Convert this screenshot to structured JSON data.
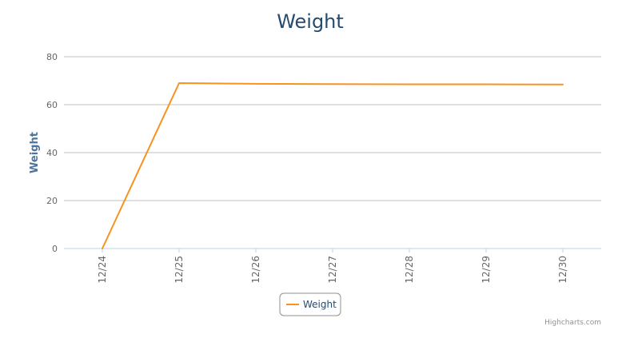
{
  "chart_data": {
    "type": "line",
    "title": "Weight",
    "ylabel": "Weight",
    "categories": [
      "12/24",
      "12/25",
      "12/26",
      "12/27",
      "12/28",
      "12/29",
      "12/30"
    ],
    "ylim": [
      0,
      80
    ],
    "yticks": [
      "0",
      "20",
      "40",
      "60",
      "80"
    ],
    "grid": true,
    "legend_position": "bottom-center",
    "series": [
      {
        "name": "Weight",
        "color": "#f7931e",
        "values": [
          0,
          69,
          68.7,
          68.6,
          68.5,
          68.5,
          68.4
        ]
      }
    ],
    "credits": "Highcharts.com"
  }
}
